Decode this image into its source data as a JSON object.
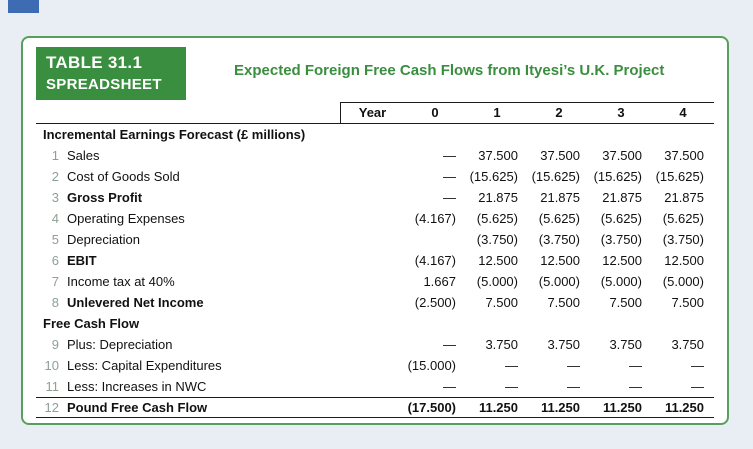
{
  "header": {
    "label_line1": "TABLE 31.1",
    "label_line2": "SPREADSHEET",
    "title": "Expected Foreign Free Cash Flows from Ityesi’s U.K. Project"
  },
  "spreadsheet": {
    "year_label": "Year",
    "columns": [
      "0",
      "1",
      "2",
      "3",
      "4"
    ],
    "sections": [
      {
        "heading": "Incremental Earnings Forecast (£ millions)",
        "rows": [
          {
            "num": "1",
            "label": "Sales",
            "bold": false,
            "total": false,
            "values": [
              "—",
              "37.500",
              "37.500",
              "37.500",
              "37.500"
            ]
          },
          {
            "num": "2",
            "label": "Cost of Goods Sold",
            "bold": false,
            "total": false,
            "values": [
              "—",
              "(15.625)",
              "(15.625)",
              "(15.625)",
              "(15.625)"
            ]
          },
          {
            "num": "3",
            "label": "Gross Profit",
            "bold": true,
            "total": false,
            "values": [
              "—",
              "21.875",
              "21.875",
              "21.875",
              "21.875"
            ]
          },
          {
            "num": "4",
            "label": "Operating Expenses",
            "bold": false,
            "total": false,
            "values": [
              "(4.167)",
              "(5.625)",
              "(5.625)",
              "(5.625)",
              "(5.625)"
            ]
          },
          {
            "num": "5",
            "label": "Depreciation",
            "bold": false,
            "total": false,
            "values": [
              "",
              "(3.750)",
              "(3.750)",
              "(3.750)",
              "(3.750)"
            ]
          },
          {
            "num": "6",
            "label": "EBIT",
            "bold": true,
            "total": false,
            "values": [
              "(4.167)",
              "12.500",
              "12.500",
              "12.500",
              "12.500"
            ]
          },
          {
            "num": "7",
            "label": "Income tax at 40%",
            "bold": false,
            "total": false,
            "values": [
              "1.667",
              "(5.000)",
              "(5.000)",
              "(5.000)",
              "(5.000)"
            ]
          },
          {
            "num": "8",
            "label": "Unlevered Net Income",
            "bold": true,
            "total": false,
            "values": [
              "(2.500)",
              "7.500",
              "7.500",
              "7.500",
              "7.500"
            ]
          }
        ]
      },
      {
        "heading": "Free Cash Flow",
        "rows": [
          {
            "num": "9",
            "label": "Plus: Depreciation",
            "bold": false,
            "total": false,
            "values": [
              "—",
              "3.750",
              "3.750",
              "3.750",
              "3.750"
            ]
          },
          {
            "num": "10",
            "label": "Less: Capital Expenditures",
            "bold": false,
            "total": false,
            "values": [
              "(15.000)",
              "—",
              "—",
              "—",
              "—"
            ]
          },
          {
            "num": "11",
            "label": "Less: Increases in NWC",
            "bold": false,
            "total": false,
            "values": [
              "—",
              "—",
              "—",
              "—",
              "—"
            ]
          },
          {
            "num": "12",
            "label": "Pound Free Cash Flow",
            "bold": true,
            "total": true,
            "values": [
              "(17.500)",
              "11.250",
              "11.250",
              "11.250",
              "11.250"
            ]
          }
        ]
      }
    ]
  },
  "colors": {
    "accent_green": "#3a8e3f",
    "panel_border": "#57a05b",
    "page_background": "#e9eef5",
    "corner_tab_blue": "#3e6cb3",
    "row_number_gray": "#8f9f93"
  }
}
